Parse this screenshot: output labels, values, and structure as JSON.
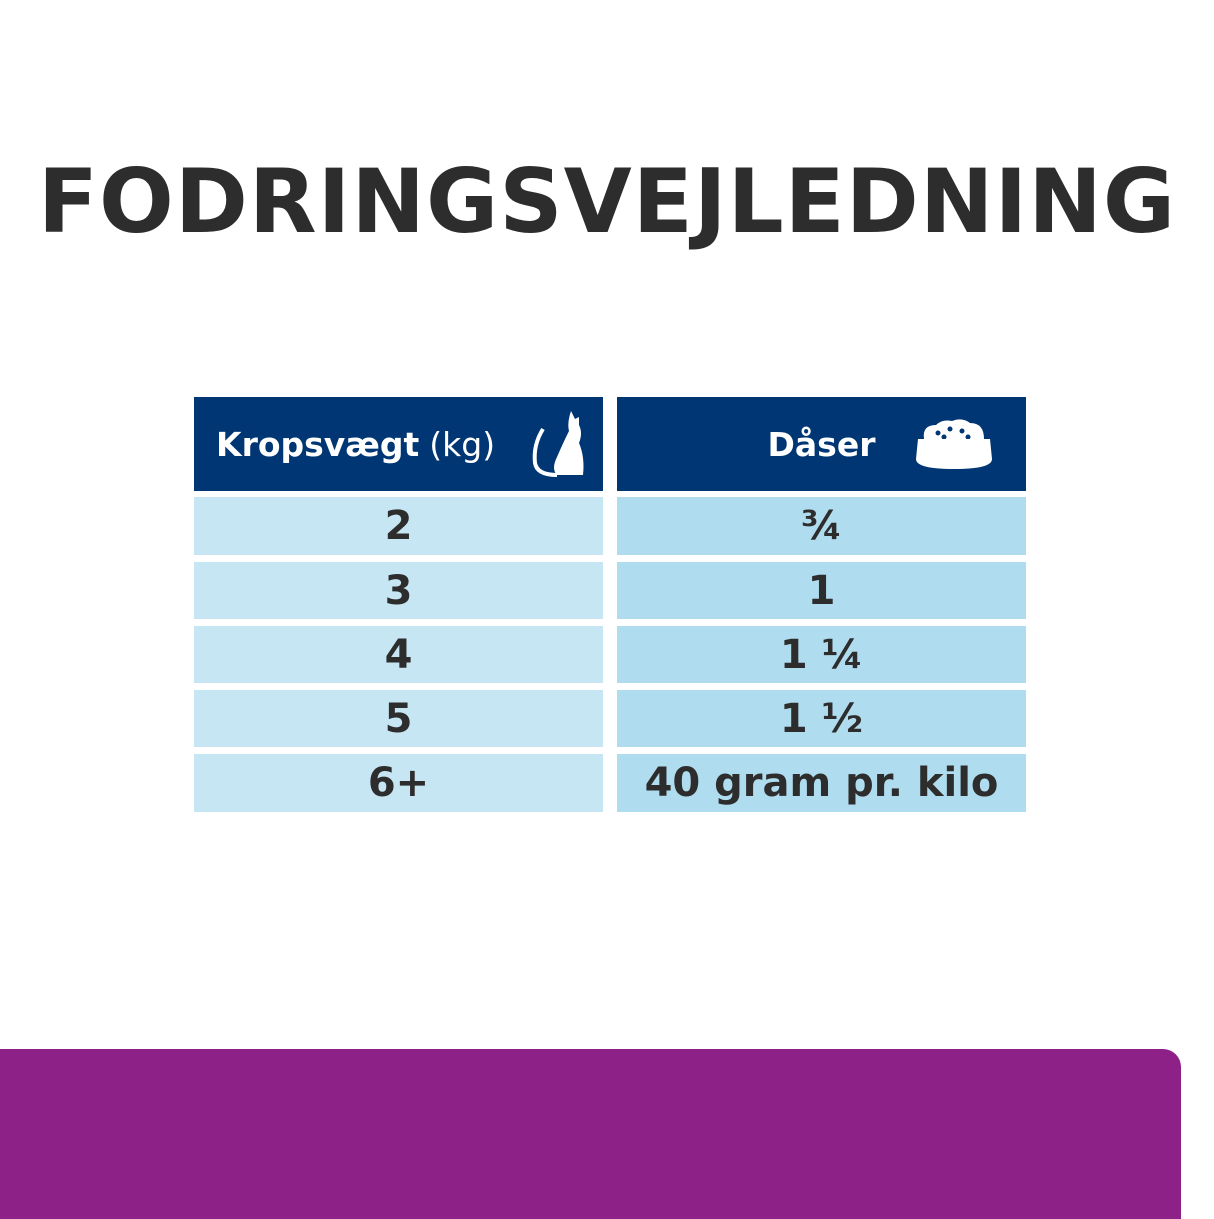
{
  "title": "FODRINGSVEJLEDNING",
  "table": {
    "header": {
      "weight_bold": "Kropsvægt",
      "weight_unit": "(kg)",
      "cans": "Dåser",
      "weight_icon": "cat-icon",
      "cans_icon": "food-bowl-icon"
    },
    "rows": [
      {
        "weight": "2",
        "cans": "¾"
      },
      {
        "weight": "3",
        "cans": "1"
      },
      {
        "weight": "4",
        "cans": "1 ¼"
      },
      {
        "weight": "5",
        "cans": "1 ½"
      },
      {
        "weight": "6+",
        "cans": "40 gram pr. kilo"
      }
    ]
  },
  "colors": {
    "header": "#003673",
    "cell_left": "#c6e6f4",
    "cell_right": "#b0dcf0",
    "accent": "#8e2188",
    "text": "#2d2d2d"
  }
}
